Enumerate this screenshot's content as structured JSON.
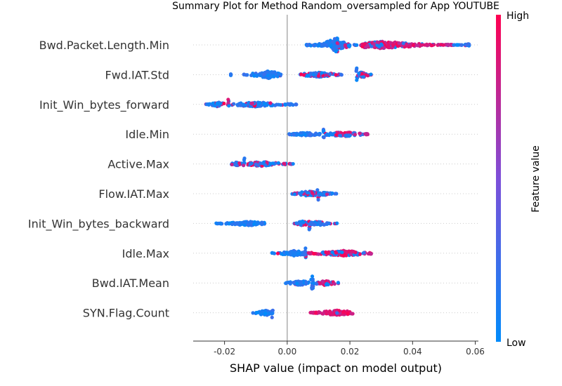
{
  "chart_data": {
    "type": "scatter",
    "subtype": "shap-beeswarm-summary",
    "title": "Summary Plot for Method Random_oversampled for App YOUTUBE",
    "xlabel": "SHAP value (impact on model output)",
    "xlim": [
      -0.03,
      0.061
    ],
    "xticks": [
      "-0.02",
      "0.00",
      "0.02",
      "0.04",
      "0.06"
    ],
    "xtick_values": [
      -0.02,
      0.0,
      0.02,
      0.04,
      0.06
    ],
    "colorbar": {
      "label": "Feature value",
      "high_label": "High",
      "low_label": "Low",
      "low_color": "#008bfb",
      "high_color": "#ff0051"
    },
    "features": [
      {
        "name": "Bwd.Packet.Length.Min",
        "segments": [
          {
            "min": 0.006,
            "max": 0.016,
            "mode": 0.0158,
            "spread": 0.55,
            "high": 0.05
          },
          {
            "min": 0.016,
            "max": 0.024,
            "mode": 0.017,
            "spread": 0.3,
            "high": 0.15
          },
          {
            "min": 0.024,
            "max": 0.053,
            "mode": 0.03,
            "spread": 0.28,
            "high": 0.8
          },
          {
            "min": 0.053,
            "max": 0.058,
            "mode": 0.058,
            "spread": 0.08,
            "high": 0.15
          }
        ]
      },
      {
        "name": "Fwd.IAT.Std",
        "segments": [
          {
            "min": -0.018,
            "max": -0.018,
            "mode": -0.018,
            "spread": 0.05,
            "high": 0.0
          },
          {
            "min": -0.014,
            "max": -0.002,
            "mode": -0.006,
            "spread": 0.28,
            "high": 0.03
          },
          {
            "min": 0.004,
            "max": 0.018,
            "mode": 0.01,
            "spread": 0.18,
            "high": 0.3
          },
          {
            "min": 0.022,
            "max": 0.0225,
            "mode": 0.0222,
            "spread": 0.55,
            "high": 0.1
          },
          {
            "min": 0.0225,
            "max": 0.027,
            "mode": 0.024,
            "spread": 0.22,
            "high": 0.55
          }
        ]
      },
      {
        "name": "Init_Win_bytes_forward",
        "segments": [
          {
            "min": -0.026,
            "max": -0.02,
            "mode": -0.022,
            "spread": 0.18,
            "high": 0.25
          },
          {
            "min": -0.019,
            "max": -0.0185,
            "mode": -0.0188,
            "spread": 0.55,
            "high": 0.35
          },
          {
            "min": -0.018,
            "max": 0.0,
            "mode": -0.01,
            "spread": 0.18,
            "high": 0.2
          },
          {
            "min": 0.0,
            "max": 0.003,
            "mode": 0.001,
            "spread": 0.08,
            "high": 0.0
          }
        ]
      },
      {
        "name": "Idle.Min",
        "segments": [
          {
            "min": 0.0,
            "max": 0.011,
            "mode": 0.006,
            "spread": 0.12,
            "high": 0.08
          },
          {
            "min": 0.0115,
            "max": 0.0118,
            "mode": 0.0116,
            "spread": 0.55,
            "high": 0.05
          },
          {
            "min": 0.012,
            "max": 0.026,
            "mode": 0.018,
            "spread": 0.18,
            "high": 0.55
          }
        ]
      },
      {
        "name": "Active.Max",
        "segments": [
          {
            "min": -0.018,
            "max": -0.0145,
            "mode": -0.016,
            "spread": 0.18,
            "high": 0.25
          },
          {
            "min": -0.014,
            "max": -0.0135,
            "mode": -0.0137,
            "spread": 0.55,
            "high": 0.2
          },
          {
            "min": -0.013,
            "max": 0.002,
            "mode": -0.008,
            "spread": 0.18,
            "high": 0.35
          }
        ]
      },
      {
        "name": "Flow.IAT.Max",
        "segments": [
          {
            "min": 0.001,
            "max": 0.0095,
            "mode": 0.007,
            "spread": 0.22,
            "high": 0.55
          },
          {
            "min": 0.0095,
            "max": 0.0105,
            "mode": 0.01,
            "spread": 0.55,
            "high": 0.2
          },
          {
            "min": 0.0105,
            "max": 0.016,
            "mode": 0.012,
            "spread": 0.12,
            "high": 0.1
          }
        ]
      },
      {
        "name": "Init_Win_bytes_backward",
        "segments": [
          {
            "min": -0.023,
            "max": -0.007,
            "mode": -0.012,
            "spread": 0.16,
            "high": 0.0
          },
          {
            "min": 0.002,
            "max": 0.0065,
            "mode": 0.005,
            "spread": 0.18,
            "high": 0.35
          },
          {
            "min": 0.0065,
            "max": 0.0075,
            "mode": 0.007,
            "spread": 0.55,
            "high": 0.35
          },
          {
            "min": 0.0075,
            "max": 0.016,
            "mode": 0.01,
            "spread": 0.15,
            "high": 0.15
          }
        ]
      },
      {
        "name": "Idle.Max",
        "segments": [
          {
            "min": -0.005,
            "max": 0.0055,
            "mode": 0.002,
            "spread": 0.2,
            "high": 0.05
          },
          {
            "min": 0.0055,
            "max": 0.0062,
            "mode": 0.0058,
            "spread": 0.55,
            "high": 0.05
          },
          {
            "min": 0.0065,
            "max": 0.027,
            "mode": 0.018,
            "spread": 0.2,
            "high": 0.7
          }
        ]
      },
      {
        "name": "Bwd.IAT.Mean",
        "segments": [
          {
            "min": -0.001,
            "max": 0.007,
            "mode": 0.004,
            "spread": 0.18,
            "high": 0.05
          },
          {
            "min": 0.0075,
            "max": 0.0085,
            "mode": 0.008,
            "spread": 0.55,
            "high": 0.1
          },
          {
            "min": 0.0085,
            "max": 0.0165,
            "mode": 0.012,
            "spread": 0.18,
            "high": 0.45
          }
        ]
      },
      {
        "name": "SYN.Flag.Count",
        "segments": [
          {
            "min": -0.011,
            "max": -0.005,
            "mode": -0.007,
            "spread": 0.22,
            "high": 0.0
          },
          {
            "min": -0.005,
            "max": -0.0045,
            "mode": -0.0048,
            "spread": 0.55,
            "high": 0.0
          },
          {
            "min": 0.007,
            "max": 0.021,
            "mode": 0.016,
            "spread": 0.2,
            "high": 0.95
          }
        ]
      }
    ]
  }
}
